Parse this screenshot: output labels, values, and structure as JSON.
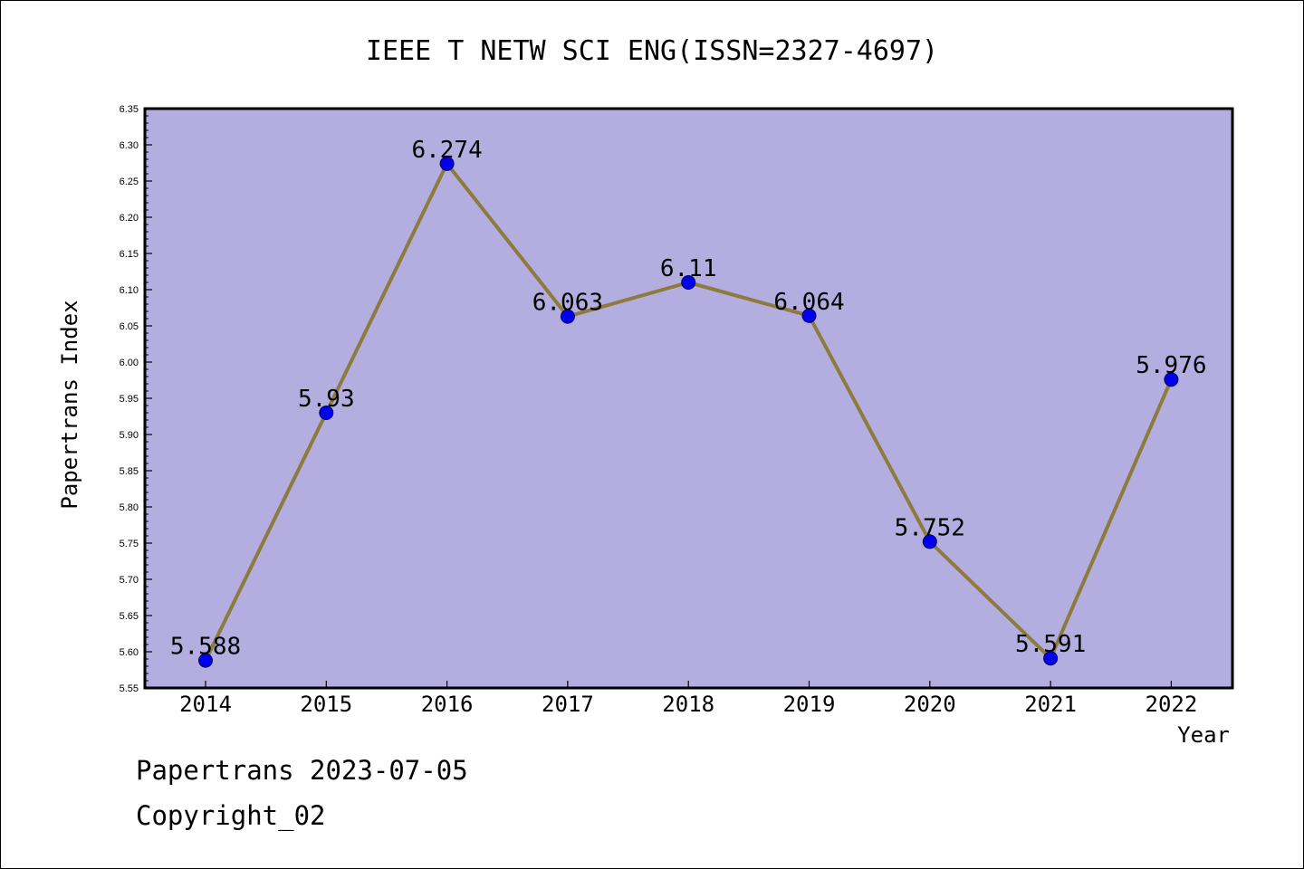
{
  "chart_data": {
    "type": "line",
    "title": "IEEE T NETW SCI ENG(ISSN=2327-4697)",
    "xlabel": "Year",
    "ylabel": "Papertrans Index",
    "categories": [
      "2014",
      "2015",
      "2016",
      "2017",
      "2018",
      "2019",
      "2020",
      "2021",
      "2022"
    ],
    "series": [
      {
        "values": [
          5.588,
          5.93,
          6.274,
          6.063,
          6.11,
          6.064,
          5.752,
          5.591,
          5.976
        ]
      }
    ],
    "data_labels": [
      "5.588",
      "5.93",
      "6.274",
      "6.063",
      "6.11",
      "6.064",
      "5.752",
      "5.591",
      "5.976"
    ],
    "ylim": [
      5.55,
      6.35
    ],
    "yticks": [
      "5.55",
      "5.60",
      "5.65",
      "5.70",
      "5.75",
      "5.80",
      "5.85",
      "5.90",
      "5.95",
      "6.00",
      "6.05",
      "6.10",
      "6.15",
      "6.20",
      "6.25",
      "6.30",
      "6.35"
    ],
    "grid": false,
    "legend": "none",
    "colors": {
      "plot_background": "#b4aee0",
      "line": "#8c7b3c",
      "marker": "#0000ee"
    }
  },
  "footer": {
    "line1": "Papertrans 2023-07-05",
    "line2": "Copyright_02"
  }
}
